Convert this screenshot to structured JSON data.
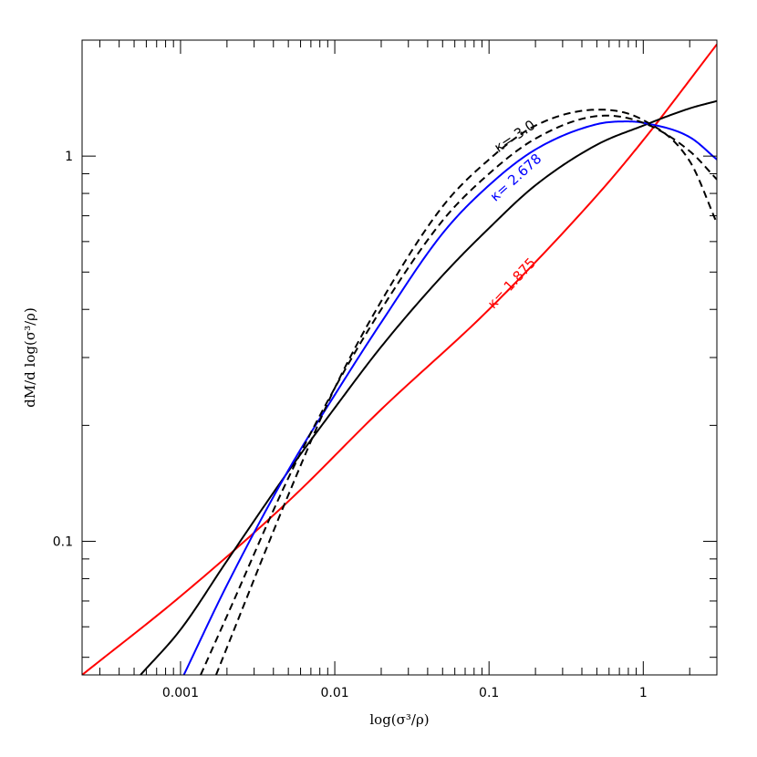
{
  "chart_data": {
    "type": "line",
    "xlabel": "log(σ³/ρ)",
    "ylabel": "dM/d log(σ³/ρ)",
    "xscale": "log",
    "yscale": "log",
    "xlim": [
      0.00023,
      3.0
    ],
    "ylim": [
      0.045,
      2.0
    ],
    "xticks": [
      {
        "value": 0.001,
        "label": "0.001"
      },
      {
        "value": 0.01,
        "label": "0.01"
      },
      {
        "value": 0.1,
        "label": "0.1"
      },
      {
        "value": 1,
        "label": "1"
      }
    ],
    "yticks": [
      {
        "value": 0.1,
        "label": "0.1"
      },
      {
        "value": 1,
        "label": "1"
      }
    ],
    "grid": false,
    "series": [
      {
        "name": "κ= 1.875",
        "color": "#ff0000",
        "dash": "solid",
        "x": [
          0.00023,
          0.001,
          0.005,
          0.02,
          0.1,
          0.5,
          1.0,
          3.0
        ],
        "y": [
          0.045,
          0.072,
          0.127,
          0.22,
          0.4,
          0.79,
          1.1,
          1.95
        ]
      },
      {
        "name": "",
        "color": "#000000",
        "dash": "solid",
        "x": [
          0.00055,
          0.001,
          0.002,
          0.005,
          0.01,
          0.02,
          0.05,
          0.1,
          0.2,
          0.5,
          1.0,
          2.0,
          3.0
        ],
        "y": [
          0.045,
          0.059,
          0.089,
          0.152,
          0.222,
          0.32,
          0.49,
          0.65,
          0.84,
          1.07,
          1.2,
          1.33,
          1.39
        ]
      },
      {
        "name": "κ= 2.678",
        "color": "#0000ff",
        "dash": "solid",
        "x": [
          0.00105,
          0.002,
          0.005,
          0.01,
          0.02,
          0.05,
          0.1,
          0.2,
          0.5,
          0.8,
          1.0,
          2.0,
          3.0
        ],
        "y": [
          0.045,
          0.077,
          0.153,
          0.24,
          0.37,
          0.63,
          0.84,
          1.04,
          1.21,
          1.23,
          1.22,
          1.12,
          0.98
        ]
      },
      {
        "name": "",
        "color": "#000000",
        "dash": "dashed",
        "x": [
          0.00135,
          0.002,
          0.005,
          0.01,
          0.02,
          0.05,
          0.1,
          0.2,
          0.5,
          1.0,
          2.0,
          3.0
        ],
        "y": [
          0.045,
          0.064,
          0.146,
          0.25,
          0.4,
          0.68,
          0.9,
          1.11,
          1.27,
          1.22,
          1.03,
          0.87
        ]
      },
      {
        "name": "κ= 3.0",
        "color": "#000000",
        "dash": "dashed",
        "x": [
          0.0017,
          0.002,
          0.005,
          0.01,
          0.02,
          0.05,
          0.1,
          0.2,
          0.5,
          1.0,
          2.0,
          3.0
        ],
        "y": [
          0.045,
          0.053,
          0.132,
          0.25,
          0.42,
          0.74,
          0.98,
          1.2,
          1.32,
          1.24,
          0.97,
          0.67
        ]
      }
    ],
    "annotations": [
      {
        "text": "κ= 3.0",
        "color": "#000000",
        "x": 0.115,
        "y": 1.02,
        "angle": -34
      },
      {
        "text": "κ= 2.678",
        "color": "#0000ff",
        "x": 0.11,
        "y": 0.76,
        "angle": -42
      },
      {
        "text": "κ= 1.875",
        "color": "#ff0000",
        "x": 0.107,
        "y": 0.4,
        "angle": -47
      }
    ]
  }
}
